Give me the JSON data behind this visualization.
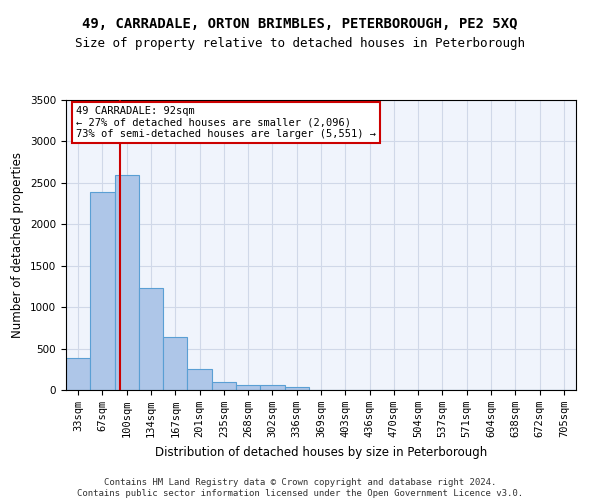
{
  "title": "49, CARRADALE, ORTON BRIMBLES, PETERBOROUGH, PE2 5XQ",
  "subtitle": "Size of property relative to detached houses in Peterborough",
  "xlabel": "Distribution of detached houses by size in Peterborough",
  "ylabel": "Number of detached properties",
  "categories": [
    "33sqm",
    "67sqm",
    "100sqm",
    "134sqm",
    "167sqm",
    "201sqm",
    "235sqm",
    "268sqm",
    "302sqm",
    "336sqm",
    "369sqm",
    "403sqm",
    "436sqm",
    "470sqm",
    "504sqm",
    "537sqm",
    "571sqm",
    "604sqm",
    "638sqm",
    "672sqm",
    "705sqm"
  ],
  "values": [
    390,
    2390,
    2590,
    1230,
    640,
    255,
    95,
    60,
    55,
    38,
    0,
    0,
    0,
    0,
    0,
    0,
    0,
    0,
    0,
    0,
    0
  ],
  "bar_color": "#aec6e8",
  "bar_edge_color": "#5a9fd4",
  "grid_color": "#d0d8e8",
  "bg_color": "#f0f4fc",
  "annotation_text": "49 CARRADALE: 92sqm\n← 27% of detached houses are smaller (2,096)\n73% of semi-detached houses are larger (5,551) →",
  "annotation_box_color": "#ffffff",
  "annotation_box_edge": "#cc0000",
  "red_line_x": 1.72,
  "ylim": [
    0,
    3500
  ],
  "yticks": [
    0,
    500,
    1000,
    1500,
    2000,
    2500,
    3000,
    3500
  ],
  "footnote": "Contains HM Land Registry data © Crown copyright and database right 2024.\nContains public sector information licensed under the Open Government Licence v3.0.",
  "title_fontsize": 10,
  "subtitle_fontsize": 9,
  "xlabel_fontsize": 8.5,
  "ylabel_fontsize": 8.5,
  "tick_fontsize": 7.5,
  "annot_fontsize": 7.5,
  "footnote_fontsize": 6.5
}
